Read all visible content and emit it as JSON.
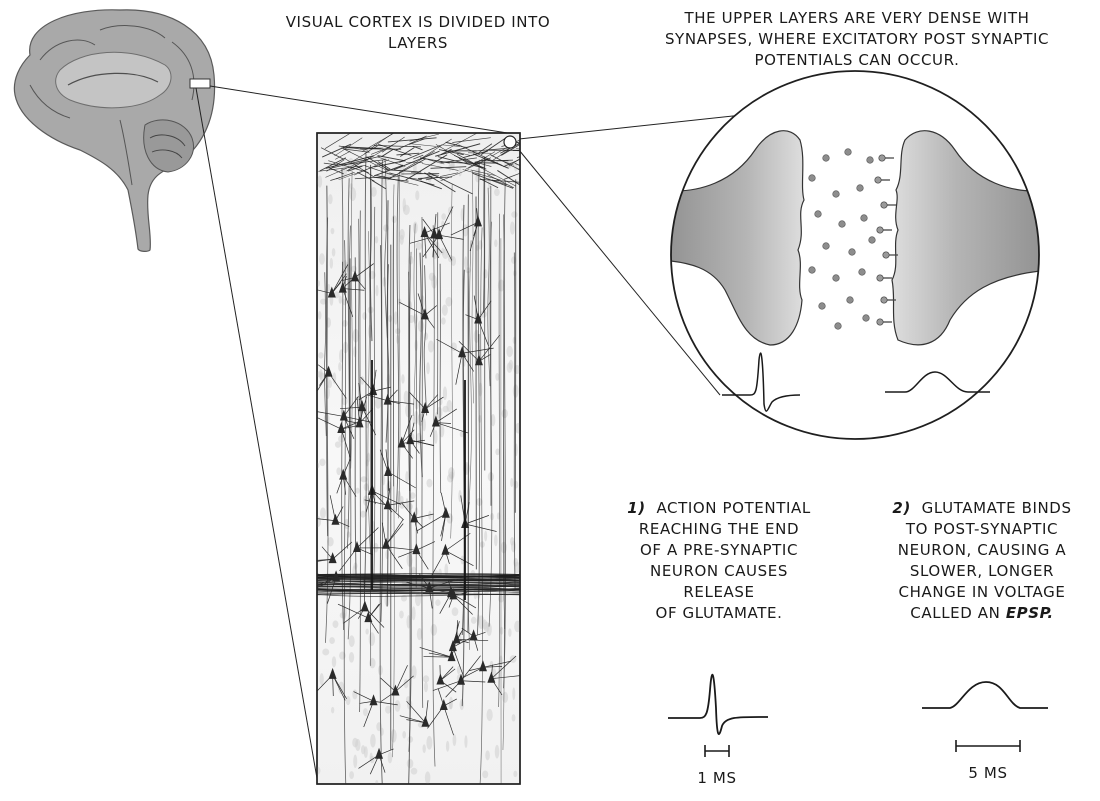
{
  "title": "Visual cortex is divided into layers",
  "upper_layers_note": "The upper layers are very dense with synapses,  where excitatory post synaptic potentials can occur.",
  "step1": {
    "number": "1)",
    "lines": [
      "Action potential",
      "reaching the end",
      "of a pre-synaptic",
      "neuron causes",
      "release",
      "of glutamate."
    ]
  },
  "step2": {
    "number": "2)",
    "lines": [
      "Glutamate binds",
      "to post-synaptic",
      "neuron, causing a",
      "slower, longer",
      "change in voltage"
    ],
    "last_line_prefix": "called an",
    "last_line_emphasis": "EPSP."
  },
  "scale_bars": {
    "action_potential": "1 ms",
    "epsp": "5 ms"
  },
  "colors": {
    "ink": "#1a1a1a",
    "brain_gray": "#a9a9a9",
    "terminal_gray": "#9a9a9a",
    "tissue_bg": "#f7f6f4"
  }
}
